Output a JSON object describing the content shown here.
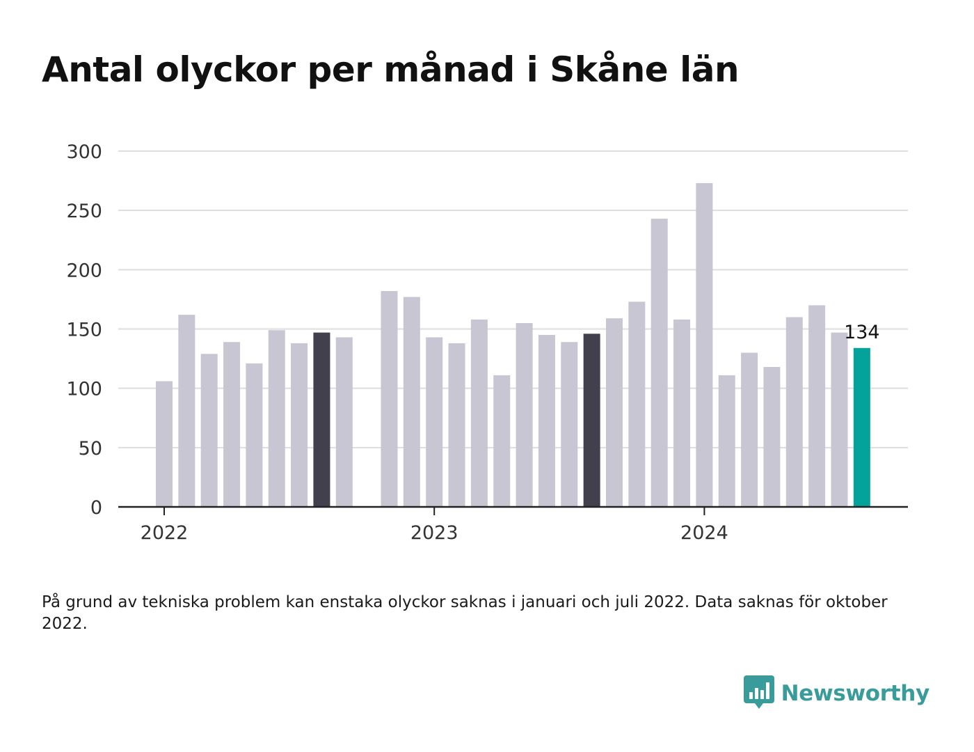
{
  "title": "Antal olyckor per månad i Skåne län",
  "note": "På grund av tekniska problem kan enstaka olyckor saknas i januari och juli 2022. Data saknas för oktober 2022.",
  "brand": {
    "name": "Newsworthy",
    "icon": "newsworthy-logo-icon"
  },
  "colors": {
    "bar": "#c8c6d2",
    "highlight": "#43404d",
    "latest": "#03a39b",
    "grid": "#dddddd",
    "axis": "#222222",
    "brand": "#3a9c9a"
  },
  "chart_data": {
    "type": "bar",
    "title": "Antal olyckor per månad i Skåne län",
    "xlabel": "",
    "ylabel": "",
    "ylim": [
      0,
      300
    ],
    "yticks": [
      "0",
      "50",
      "100",
      "150",
      "200",
      "250",
      "300"
    ],
    "xticks": [
      {
        "label": "2022",
        "at": "2022-01"
      },
      {
        "label": "2023",
        "at": "2023-01"
      },
      {
        "label": "2024",
        "at": "2024-01"
      }
    ],
    "grid": true,
    "categories": [
      "2022-01",
      "2022-02",
      "2022-03",
      "2022-04",
      "2022-05",
      "2022-06",
      "2022-07",
      "2022-08",
      "2022-09",
      "2022-10",
      "2022-11",
      "2022-12",
      "2023-01",
      "2023-02",
      "2023-03",
      "2023-04",
      "2023-05",
      "2023-06",
      "2023-07",
      "2023-08",
      "2023-09",
      "2023-10",
      "2023-11",
      "2023-12",
      "2024-01",
      "2024-02",
      "2024-03",
      "2024-04",
      "2024-05",
      "2024-06",
      "2024-07",
      "2024-08"
    ],
    "values": [
      106,
      162,
      129,
      139,
      121,
      149,
      138,
      147,
      143,
      null,
      182,
      177,
      143,
      138,
      158,
      111,
      155,
      145,
      139,
      146,
      159,
      173,
      243,
      158,
      273,
      111,
      130,
      118,
      160,
      170,
      147,
      134
    ],
    "highlighted": [
      "2022-08",
      "2023-08"
    ],
    "latest": "2024-08",
    "annotations": [
      {
        "category": "2024-08",
        "text": "134"
      }
    ]
  }
}
